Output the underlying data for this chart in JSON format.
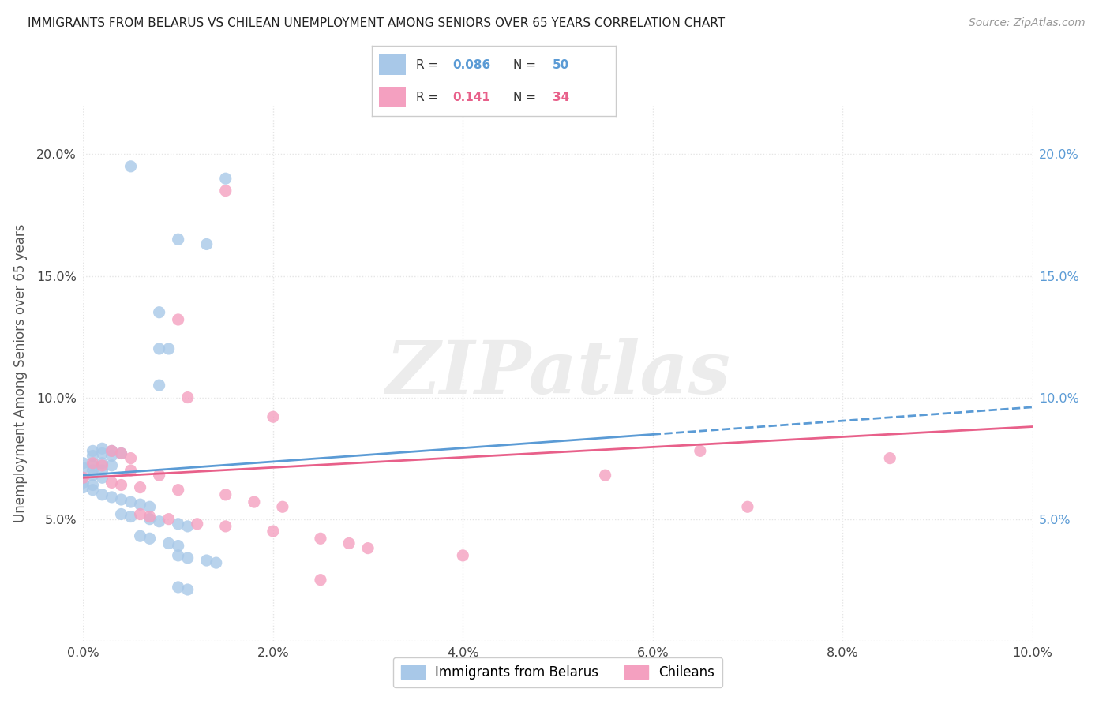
{
  "title": "IMMIGRANTS FROM BELARUS VS CHILEAN UNEMPLOYMENT AMONG SENIORS OVER 65 YEARS CORRELATION CHART",
  "source": "Source: ZipAtlas.com",
  "ylabel": "Unemployment Among Seniors over 65 years",
  "xlim": [
    0.0,
    0.1
  ],
  "ylim": [
    0.0,
    0.22
  ],
  "xtick_vals": [
    0.0,
    0.02,
    0.04,
    0.06,
    0.08,
    0.1
  ],
  "ytick_vals": [
    0.0,
    0.05,
    0.1,
    0.15,
    0.2
  ],
  "watermark": "ZIPatlas",
  "scatter_color_belarus": "#a8c8e8",
  "scatter_color_chile": "#f4a0c0",
  "line_color_belarus": "#5b9bd5",
  "line_color_chile": "#e8608a",
  "right_tick_color": "#5b9bd5",
  "bg_color": "#ffffff",
  "grid_color": "#e5e5e5",
  "title_color": "#222222",
  "watermark_color": "#ececec",
  "belarus_trend_x": [
    0.0,
    0.1
  ],
  "belarus_trend_y": [
    0.068,
    0.096
  ],
  "chile_trend_x": [
    0.0,
    0.1
  ],
  "chile_trend_y": [
    0.067,
    0.088
  ],
  "legend_r1": "0.086",
  "legend_n1": "50",
  "legend_r2": "0.141",
  "legend_n2": "34",
  "legend_color1": "#5b9bd5",
  "legend_color2": "#e8608a",
  "belarus_pts": [
    [
      0.005,
      0.195
    ],
    [
      0.015,
      0.19
    ],
    [
      0.01,
      0.165
    ],
    [
      0.013,
      0.163
    ],
    [
      0.008,
      0.135
    ],
    [
      0.008,
      0.12
    ],
    [
      0.009,
      0.12
    ],
    [
      0.008,
      0.105
    ],
    [
      0.001,
      0.078
    ],
    [
      0.002,
      0.079
    ],
    [
      0.002,
      0.077
    ],
    [
      0.003,
      0.078
    ],
    [
      0.003,
      0.076
    ],
    [
      0.004,
      0.077
    ],
    [
      0.001,
      0.076
    ],
    [
      0.0,
      0.073
    ],
    [
      0.001,
      0.072
    ],
    [
      0.002,
      0.073
    ],
    [
      0.003,
      0.072
    ],
    [
      0.0,
      0.071
    ],
    [
      0.001,
      0.07
    ],
    [
      0.002,
      0.07
    ],
    [
      0.001,
      0.068
    ],
    [
      0.002,
      0.067
    ],
    [
      0.0,
      0.065
    ],
    [
      0.001,
      0.064
    ],
    [
      0.0,
      0.063
    ],
    [
      0.001,
      0.062
    ],
    [
      0.002,
      0.06
    ],
    [
      0.003,
      0.059
    ],
    [
      0.004,
      0.058
    ],
    [
      0.005,
      0.057
    ],
    [
      0.006,
      0.056
    ],
    [
      0.007,
      0.055
    ],
    [
      0.004,
      0.052
    ],
    [
      0.005,
      0.051
    ],
    [
      0.007,
      0.05
    ],
    [
      0.008,
      0.049
    ],
    [
      0.01,
      0.048
    ],
    [
      0.011,
      0.047
    ],
    [
      0.006,
      0.043
    ],
    [
      0.007,
      0.042
    ],
    [
      0.009,
      0.04
    ],
    [
      0.01,
      0.039
    ],
    [
      0.01,
      0.035
    ],
    [
      0.011,
      0.034
    ],
    [
      0.013,
      0.033
    ],
    [
      0.014,
      0.032
    ],
    [
      0.01,
      0.022
    ],
    [
      0.011,
      0.021
    ]
  ],
  "chile_pts": [
    [
      0.015,
      0.185
    ],
    [
      0.01,
      0.132
    ],
    [
      0.011,
      0.1
    ],
    [
      0.02,
      0.092
    ],
    [
      0.003,
      0.078
    ],
    [
      0.004,
      0.077
    ],
    [
      0.005,
      0.075
    ],
    [
      0.001,
      0.073
    ],
    [
      0.002,
      0.072
    ],
    [
      0.005,
      0.07
    ],
    [
      0.008,
      0.068
    ],
    [
      0.0,
      0.067
    ],
    [
      0.003,
      0.065
    ],
    [
      0.004,
      0.064
    ],
    [
      0.006,
      0.063
    ],
    [
      0.01,
      0.062
    ],
    [
      0.015,
      0.06
    ],
    [
      0.018,
      0.057
    ],
    [
      0.021,
      0.055
    ],
    [
      0.006,
      0.052
    ],
    [
      0.007,
      0.051
    ],
    [
      0.009,
      0.05
    ],
    [
      0.012,
      0.048
    ],
    [
      0.015,
      0.047
    ],
    [
      0.02,
      0.045
    ],
    [
      0.025,
      0.042
    ],
    [
      0.028,
      0.04
    ],
    [
      0.03,
      0.038
    ],
    [
      0.04,
      0.035
    ],
    [
      0.055,
      0.068
    ],
    [
      0.065,
      0.078
    ],
    [
      0.07,
      0.055
    ],
    [
      0.085,
      0.075
    ],
    [
      0.025,
      0.025
    ]
  ]
}
